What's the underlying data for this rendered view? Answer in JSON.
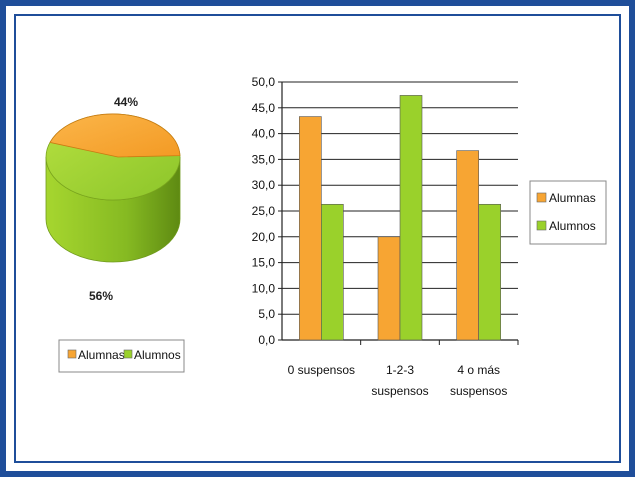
{
  "chart_data": [
    {
      "type": "pie",
      "labels": [
        "Alumnas",
        "Alumnos"
      ],
      "values": [
        44,
        56
      ],
      "data_labels": [
        "44%",
        "56%"
      ],
      "colors": [
        "#f7a533",
        "#9ad12b"
      ],
      "legend_position": "bottom"
    },
    {
      "type": "bar",
      "categories": [
        "0 suspensos",
        "1-2-3 suspensos",
        "4 o más suspensos"
      ],
      "category_lines": [
        [
          "0 suspensos"
        ],
        [
          "1-2-3",
          "suspensos"
        ],
        [
          "4 o más",
          "suspensos"
        ]
      ],
      "series": [
        {
          "name": "Alumnas",
          "values": [
            43.3,
            20.0,
            36.7
          ],
          "color": "#f7a533"
        },
        {
          "name": "Alumnos",
          "values": [
            26.3,
            47.4,
            26.3
          ],
          "color": "#9ad12b"
        }
      ],
      "ylim": [
        0,
        50
      ],
      "yticks": [
        "0,0",
        "5,0",
        "10,0",
        "15,0",
        "20,0",
        "25,0",
        "30,0",
        "35,0",
        "40,0",
        "45,0",
        "50,0"
      ],
      "grid": true,
      "legend_position": "right"
    }
  ]
}
